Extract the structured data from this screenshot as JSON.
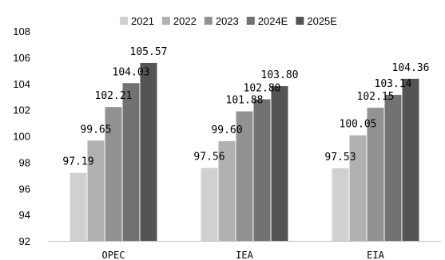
{
  "chart_data": {
    "type": "bar",
    "categories": [
      "OPEC",
      "IEA",
      "EIA"
    ],
    "series": [
      {
        "name": "2021",
        "values": [
          97.19,
          97.56,
          97.53
        ],
        "color": "#d0d0d0"
      },
      {
        "name": "2022",
        "values": [
          99.65,
          99.6,
          100.05
        ],
        "color": "#b1b1b1"
      },
      {
        "name": "2023",
        "values": [
          102.21,
          101.88,
          102.15
        ],
        "color": "#929292"
      },
      {
        "name": "2024E",
        "values": [
          104.03,
          102.8,
          103.14
        ],
        "color": "#727272"
      },
      {
        "name": "2025E",
        "values": [
          105.57,
          103.8,
          104.36
        ],
        "color": "#545454"
      }
    ],
    "data_labels": [
      [
        "97.19",
        "97.56",
        "97.53"
      ],
      [
        "99.65",
        "99.60",
        "100.05"
      ],
      [
        "102.21",
        "101.88",
        "102.15"
      ],
      [
        "104.03",
        "102.80",
        "103.14"
      ],
      [
        "105.57",
        "103.80",
        "104.36"
      ]
    ],
    "ylim": [
      92,
      108
    ],
    "yticks": [
      "92",
      "94",
      "96",
      "98",
      "100",
      "102",
      "104",
      "106",
      "108"
    ],
    "title": "",
    "xlabel": "",
    "ylabel": "",
    "grid": false,
    "legend_position": "top"
  }
}
